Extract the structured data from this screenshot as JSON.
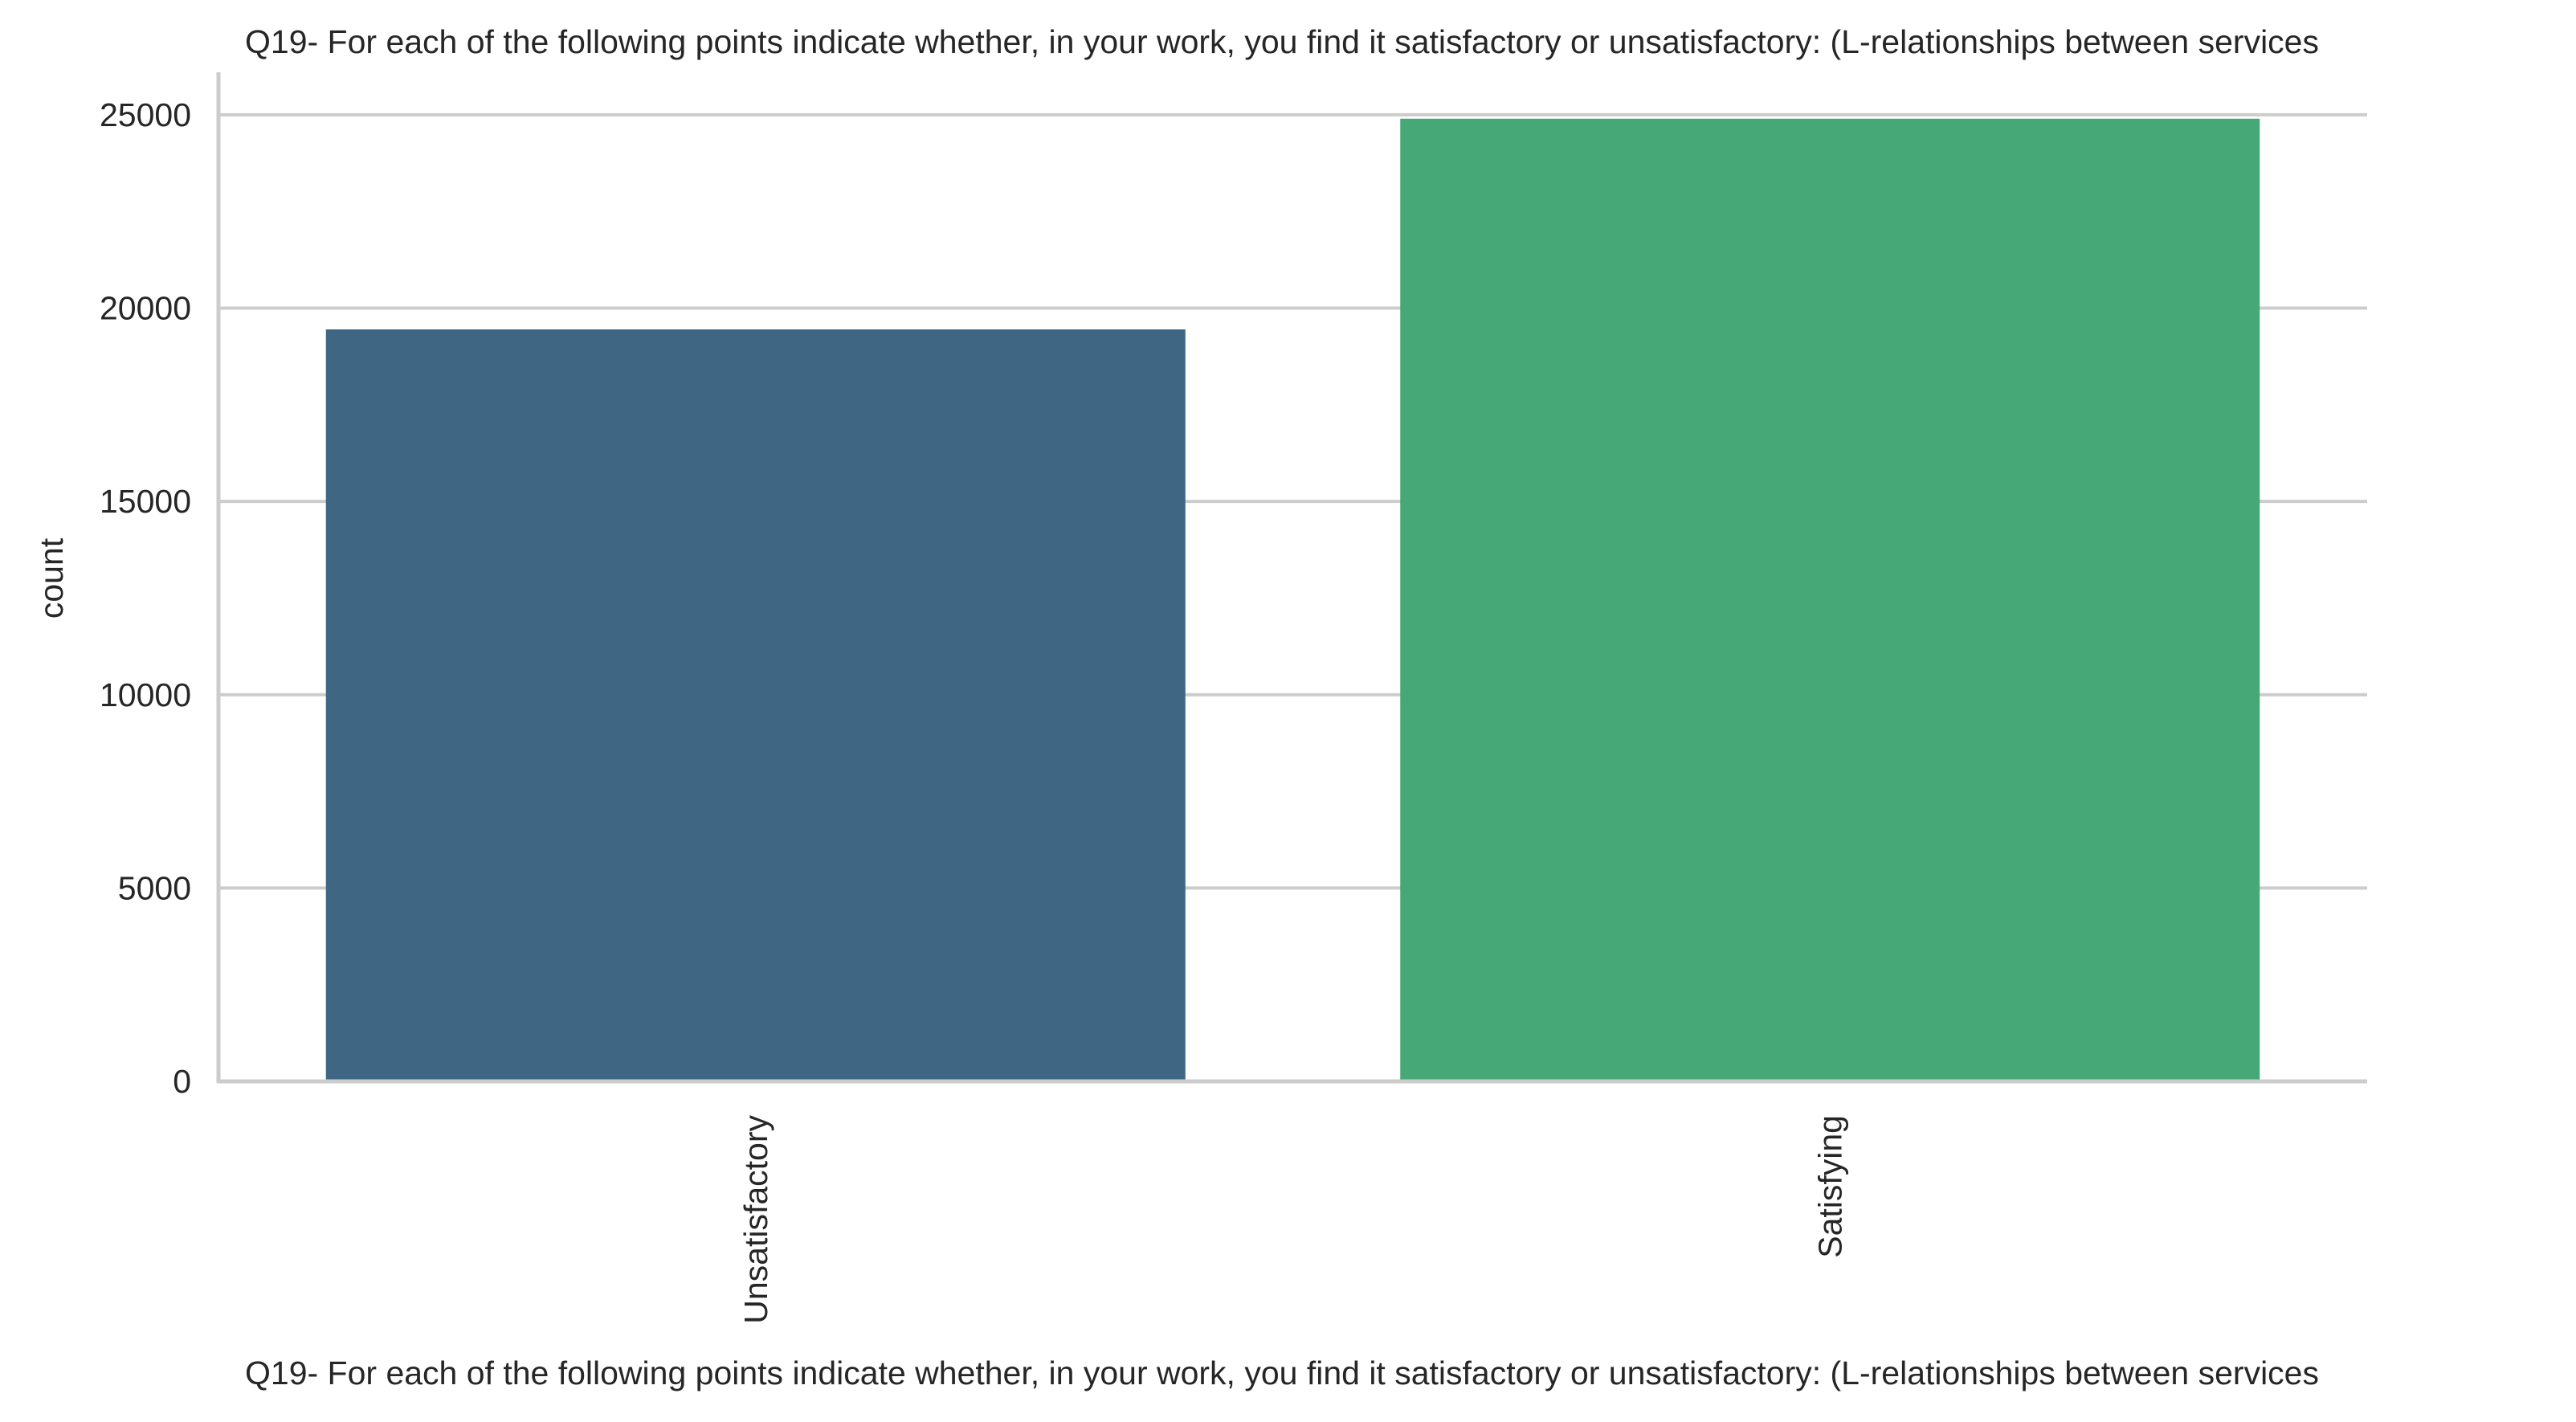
{
  "chart_data": {
    "type": "bar",
    "title": "Q19- For each of the following points indicate whether, in your work, you find it satisfactory or unsatisfactory: (L-relationships between services",
    "xlabel": "Q19- For each of the following points indicate whether, in your work, you find it satisfactory or unsatisfactory: (L-relationships between services",
    "ylabel": "count",
    "categories": [
      "Unsatisfactory",
      "Satisfying"
    ],
    "values": [
      19450,
      24900
    ],
    "ylim": [
      0,
      26100
    ],
    "yticks": [
      0,
      5000,
      10000,
      15000,
      20000,
      25000
    ],
    "ytick_labels": [
      "0",
      "5000",
      "10000",
      "15000",
      "20000",
      "25000"
    ],
    "grid": "horizontal",
    "colors": {
      "bars": [
        "#3f6783",
        "#46a877"
      ],
      "grid": "#cccccc",
      "axis": "#cccccc",
      "text": "#262626"
    }
  }
}
